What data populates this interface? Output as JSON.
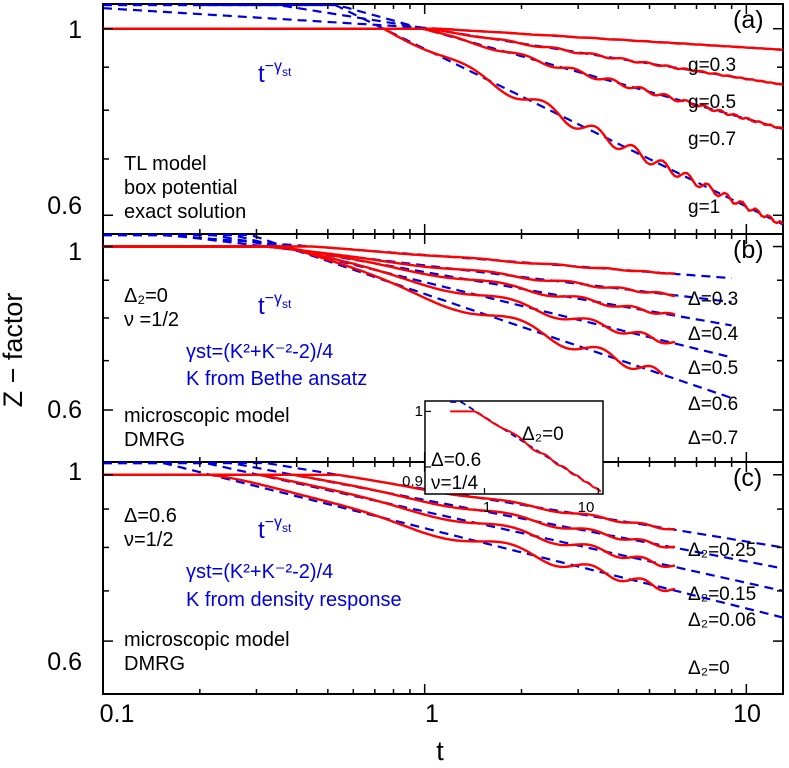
{
  "axis": {
    "xlabel": "t",
    "ylabel": "Z − factor",
    "xticks": [
      "0.1",
      "1",
      "10"
    ],
    "xrange": [
      0.1,
      13
    ]
  },
  "colors": {
    "exact": "#ff0000",
    "fit": "#0000dd",
    "text_blue": "#0000dd"
  },
  "chart_data": [
    {
      "type": "line",
      "id": "a",
      "panel_label": "(a)",
      "yscale": "log",
      "ylim": [
        0.57,
        1.07
      ],
      "yticks": [
        "1",
        "0.6"
      ],
      "annotations_black": [
        "TL model",
        "box potential",
        "exact solution"
      ],
      "fit_label": {
        "base": "t",
        "sup": "−γ",
        "sub": "st"
      },
      "series": [
        {
          "name": "g=0.3",
          "gamma": 0.0234,
          "omega": 8.0,
          "end_z": 0.944,
          "wiggle": 0.1,
          "tmax": 13,
          "fit_tmin": 0.1,
          "fit_tmax": 13
        },
        {
          "name": "g=0.5",
          "gamma": 0.0603,
          "omega": 8.0,
          "end_z": 0.858,
          "wiggle": 0.15,
          "tmax": 13,
          "fit_tmin": 0.1,
          "fit_tmax": 13
        },
        {
          "name": "g=0.7",
          "gamma": 0.1064,
          "omega": 7.0,
          "end_z": 0.76,
          "wiggle": 0.18,
          "tmax": 13,
          "fit_tmin": 0.1,
          "fit_tmax": 13
        },
        {
          "name": "g=1",
          "gamma": 0.1875,
          "omega": 6.0,
          "end_z": 0.585,
          "wiggle": 0.2,
          "tmax": 13,
          "fit_tmin": 0.2,
          "fit_tmax": 13
        }
      ]
    },
    {
      "type": "line",
      "id": "b",
      "panel_label": "(b)",
      "yscale": "log",
      "ylim": [
        0.51,
        1.04
      ],
      "yticks": [
        "1",
        "0.6"
      ],
      "annotations_black": [
        "Δ₂=0",
        "ν =1/2",
        "microscopic model",
        "DMRG"
      ],
      "annotations_blue": [
        "γst=(K²+K⁻²-2)/4",
        "K from Bethe ansatz"
      ],
      "fit_label": {
        "base": "t",
        "sup": "−γ",
        "sub": "st"
      },
      "series": [
        {
          "name": "Δ=0.3",
          "gamma": 0.033,
          "omega": 5.5,
          "end_z": 0.895,
          "wiggle": 0.1,
          "tmax": 6.0,
          "fit_tmin": 0.1,
          "fit_tmax": 9
        },
        {
          "name": "Δ=0.4",
          "gamma": 0.052,
          "omega": 5.0,
          "end_z": 0.825,
          "wiggle": 0.12,
          "tmax": 6.0,
          "fit_tmin": 0.1,
          "fit_tmax": 9
        },
        {
          "name": "Δ=0.5",
          "gamma": 0.076,
          "omega": 4.6,
          "end_z": 0.76,
          "wiggle": 0.14,
          "tmax": 6.0,
          "fit_tmin": 0.1,
          "fit_tmax": 9
        },
        {
          "name": "Δ=0.6",
          "gamma": 0.107,
          "omega": 4.3,
          "end_z": 0.68,
          "wiggle": 0.16,
          "tmax": 6.0,
          "fit_tmin": 0.1,
          "fit_tmax": 9
        },
        {
          "name": "Δ=0.7",
          "gamma": 0.148,
          "omega": 4.0,
          "end_z": 0.59,
          "wiggle": 0.18,
          "tmax": 5.5,
          "fit_tmin": 0.1,
          "fit_tmax": 9
        }
      ],
      "inset": {
        "xticks": [
          "1",
          "10"
        ],
        "yticks": [
          "1",
          "0.9"
        ],
        "annotations": [
          "Δ₂=0",
          "Δ=0.6",
          "ν=1/4"
        ]
      }
    },
    {
      "type": "line",
      "id": "c",
      "panel_label": "(c)",
      "yscale": "log",
      "ylim": [
        0.51,
        1.04
      ],
      "yticks": [
        "1",
        "0.6"
      ],
      "annotations_black": [
        "Δ=0.6",
        "ν=1/2",
        "microscopic model",
        "DMRG"
      ],
      "annotations_blue": [
        "γst=(K²+K⁻²-2)/4",
        "K from density response"
      ],
      "fit_label": {
        "base": "t",
        "sup": "−γ",
        "sub": "st"
      },
      "series": [
        {
          "name": "Δ₂=0.25",
          "gamma": 0.07,
          "omega": 4.3,
          "end_z": 0.8,
          "wiggle": 0.12,
          "tmax": 6.0,
          "fit_tmin": 0.1,
          "fit_tmax": 13
        },
        {
          "name": "Δ₂=0.15",
          "gamma": 0.082,
          "omega": 4.3,
          "end_z": 0.75,
          "wiggle": 0.14,
          "tmax": 6.0,
          "fit_tmin": 0.1,
          "fit_tmax": 13
        },
        {
          "name": "Δ₂=0.06",
          "gamma": 0.095,
          "omega": 4.3,
          "end_z": 0.7,
          "wiggle": 0.15,
          "tmax": 6.0,
          "fit_tmin": 0.1,
          "fit_tmax": 13
        },
        {
          "name": "Δ₂=0",
          "gamma": 0.107,
          "omega": 4.3,
          "end_z": 0.645,
          "wiggle": 0.16,
          "tmax": 6.0,
          "fit_tmin": 0.1,
          "fit_tmax": 13
        }
      ]
    }
  ]
}
